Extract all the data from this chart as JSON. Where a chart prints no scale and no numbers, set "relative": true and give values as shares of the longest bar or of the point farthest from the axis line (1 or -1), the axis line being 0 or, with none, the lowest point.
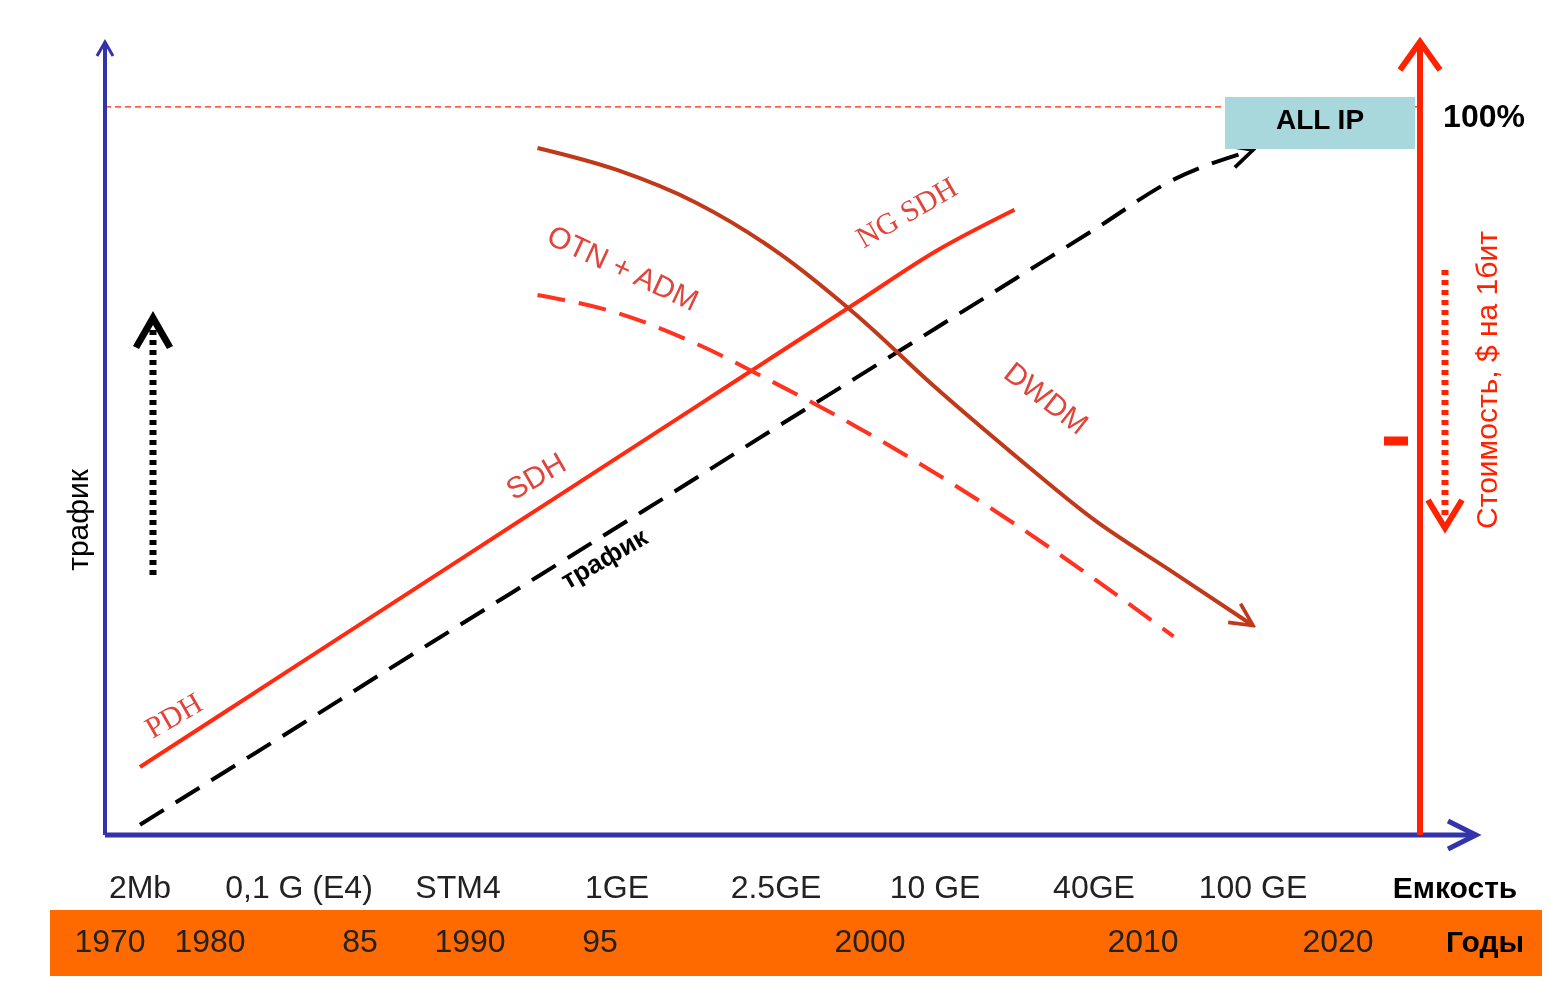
{
  "chart_data": {
    "type": "line",
    "relative": true,
    "xlabel": "Емкость",
    "ylabel": "трафик",
    "y2label": "Стоимость, $ на 1бит",
    "categories": [
      "2Mb",
      null,
      "0,1 G (E4)",
      null,
      "STM4",
      null,
      "1GE",
      null,
      "2.5GE",
      null,
      "10 GE",
      null,
      "40GE",
      null,
      "100 GE",
      null
    ],
    "ref_lines": [
      {
        "axis": "y",
        "value": 1.06,
        "color": "#ff2200",
        "line_style": "dashed"
      }
    ],
    "series": [
      {
        "color": "#000000",
        "line_style": "dashed",
        "values": [
          0.015,
          0.087,
          0.159,
          0.232,
          0.304,
          0.376,
          0.448,
          0.52,
          0.593,
          0.665,
          0.737,
          0.809,
          0.881,
          0.954,
          0.997,
          null
        ]
      },
      {
        "color": "#ff2a10",
        "line_style": "solid",
        "values": [
          0.099,
          0.174,
          0.249,
          0.324,
          0.399,
          0.474,
          0.549,
          0.624,
          0.699,
          0.774,
          0.849,
          0.91,
          null,
          null,
          null,
          null
        ]
      },
      {
        "color": "#ff3322",
        "line_style": "dashed",
        "values": [
          null,
          null,
          null,
          null,
          null,
          0.786,
          0.76,
          0.715,
          0.657,
          0.595,
          0.527,
          0.453,
          0.373,
          0.289,
          null,
          null
        ]
      },
      {
        "color": "#c0391b",
        "line_style": "solid",
        "values": [
          null,
          null,
          null,
          null,
          null,
          1.0,
          0.968,
          0.92,
          0.85,
          0.758,
          0.652,
          0.553,
          0.459,
          0.382,
          0.305,
          null
        ]
      }
    ],
    "annotations": [
      "PDH",
      "SDH",
      "NG SDH",
      "OTN + ADM",
      "DWDM",
      "трафик",
      "ALL IP",
      "100%",
      "1970",
      "1980",
      "85",
      "1990",
      "95",
      "2000",
      "2010",
      "2020",
      "Годы"
    ]
  }
}
